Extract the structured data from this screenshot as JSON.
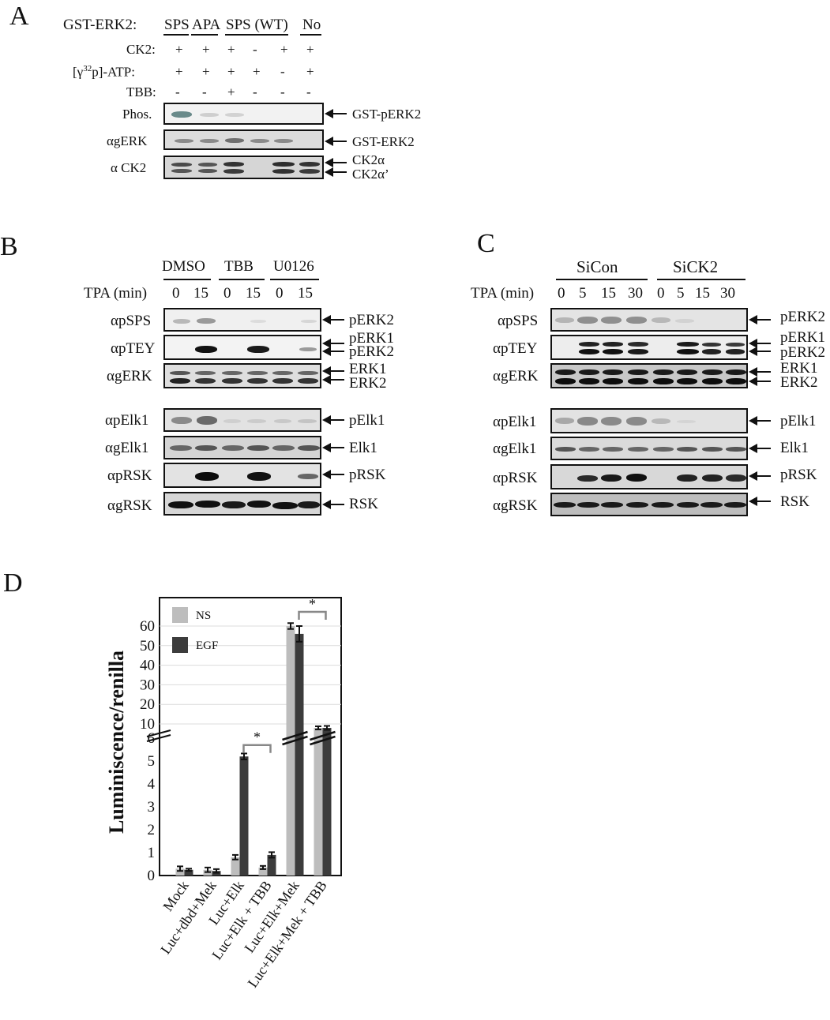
{
  "panelA": {
    "letter": "A",
    "gst_label": "GST-ERK2:",
    "groups": [
      "SPS",
      "APA",
      "SPS (WT)",
      "No"
    ],
    "rows": [
      {
        "label": "CK2:",
        "signs": [
          "+",
          "+",
          "+",
          "-",
          "+",
          "+"
        ]
      },
      {
        "label_pre": "[γ",
        "label_sup": "32",
        "label_post": "p]-ATP:",
        "signs": [
          "+",
          "+",
          "+",
          "+",
          "-",
          "+"
        ]
      },
      {
        "label": "TBB:",
        "signs": [
          "-",
          "-",
          "+",
          "-",
          "-",
          "-"
        ]
      }
    ],
    "blots": [
      {
        "label": "Phos.",
        "targets": [
          "GST-pERK2"
        ]
      },
      {
        "label": "αgERK",
        "targets": [
          "GST-ERK2"
        ]
      },
      {
        "label": "α CK2",
        "targets": [
          "CK2α",
          "CK2α’"
        ]
      }
    ]
  },
  "panelB": {
    "letter": "B",
    "groups": [
      "DMSO",
      "TBB",
      "U0126"
    ],
    "tpa_label": "TPA (min)",
    "times": [
      "0",
      "15",
      "0",
      "15",
      "0",
      "15"
    ],
    "blots": [
      {
        "label": "αpSPS",
        "targets": [
          "pERK2"
        ]
      },
      {
        "label": "αpTEY",
        "targets": [
          "pERK1",
          "pERK2"
        ]
      },
      {
        "label": "αgERK",
        "targets": [
          "ERK1",
          "ERK2"
        ]
      },
      {
        "label": "αpElk1",
        "targets": [
          "pElk1"
        ]
      },
      {
        "label": "αgElk1",
        "targets": [
          "Elk1"
        ]
      },
      {
        "label": "αpRSK",
        "targets": [
          "pRSK"
        ]
      },
      {
        "label": "αgRSK",
        "targets": [
          "RSK"
        ]
      }
    ]
  },
  "panelC": {
    "letter": "C",
    "groups": [
      "SiCon",
      "SiCK2"
    ],
    "tpa_label": "TPA (min)",
    "times": [
      "0",
      "5",
      "15",
      "30",
      "0",
      "5",
      "15",
      "30"
    ],
    "blots": [
      {
        "label": "αpSPS",
        "targets": [
          "pERK2"
        ]
      },
      {
        "label": "αpTEY",
        "targets": [
          "pERK1",
          "pERK2"
        ]
      },
      {
        "label": "αgERK",
        "targets": [
          "ERK1",
          "ERK2"
        ]
      },
      {
        "label": "αpElk1",
        "targets": [
          "pElk1"
        ]
      },
      {
        "label": "αgElk1",
        "targets": [
          "Elk1"
        ]
      },
      {
        "label": "αpRSK",
        "targets": [
          "pRSK"
        ]
      },
      {
        "label": "αgRSK",
        "targets": [
          "RSK"
        ]
      }
    ]
  },
  "panelD": {
    "letter": "D",
    "chart_data": {
      "type": "bar",
      "ylabel": "Luminiscence/renilla",
      "categories": [
        "Mock",
        "Luc+dbd+Mek",
        "Luc+Elk",
        "Luc+Elk + TBB",
        "Luc+Elk+Mek",
        "Luc+Elk+Mek + TBB"
      ],
      "series": [
        {
          "name": "NS",
          "color": "#bdbdbd",
          "values": [
            0.3,
            0.25,
            0.8,
            0.35,
            60,
            8
          ]
        },
        {
          "name": "EGF",
          "color": "#3c3c3c",
          "values": [
            0.25,
            0.2,
            5.2,
            0.9,
            56,
            8
          ]
        }
      ],
      "errors": [
        [
          0.1,
          0.1,
          0.1,
          0.07,
          1.5,
          0.8
        ],
        [
          0.05,
          0.08,
          0.13,
          0.12,
          4,
          1
        ]
      ],
      "lower_ticks": [
        "0",
        "1",
        "2",
        "3",
        "4",
        "5",
        "6"
      ],
      "upper_ticks": [
        "10",
        "20",
        "30",
        "40",
        "50",
        "60"
      ],
      "axis_break": true,
      "significance": [
        "*",
        "*"
      ],
      "legend_position": "top-left"
    }
  }
}
